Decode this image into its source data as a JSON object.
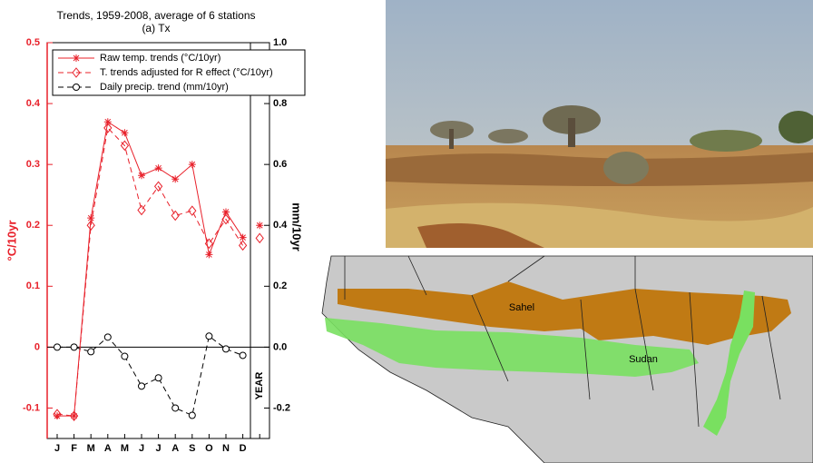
{
  "chart_data": {
    "type": "line",
    "title": "Trends, 1959-2008, average of 6 stations",
    "subtitle": "(a) Tx",
    "y_label": "°C/10yr",
    "y2_label": "mm/10yr",
    "categories": [
      "J",
      "F",
      "M",
      "A",
      "M",
      "J",
      "J",
      "A",
      "S",
      "O",
      "N",
      "D",
      "YEAR"
    ],
    "ylim": [
      -0.15,
      0.5
    ],
    "yticks": [
      -0.1,
      0,
      0.1,
      0.2,
      0.3,
      0.4,
      0.5
    ],
    "y2lim": [
      -0.3,
      1.0
    ],
    "y2ticks": [
      -0.2,
      {
        "value": 0,
        "label": "0.0"
      },
      0.2,
      0.4,
      0.6,
      0.8,
      {
        "value": 1,
        "label": "1.0"
      }
    ],
    "zero_line": true,
    "legend": "upper left",
    "series": [
      {
        "name": "Raw temp. trends (°C/10yr)",
        "color": "#e8202a",
        "dash": false,
        "marker": "asterisk",
        "values": [
          -0.113,
          -0.113,
          0.212,
          0.37,
          0.352,
          0.282,
          0.294,
          0.276,
          0.3,
          0.152,
          0.222,
          0.18,
          0.2
        ]
      },
      {
        "name": "T. trends adjusted for R effect (°C/10yr)",
        "color": "#e8202a",
        "dash": true,
        "marker": "diamond",
        "values": [
          -0.11,
          -0.113,
          0.2,
          0.36,
          0.331,
          0.225,
          0.264,
          0.216,
          0.224,
          0.17,
          0.21,
          0.167,
          0.179
        ]
      },
      {
        "name": "Daily precip. trend (mm/10yr)",
        "color": "#000000",
        "dash": true,
        "marker": "circle",
        "axis": "y2",
        "values": [
          0,
          0,
          -0.015,
          0.033,
          -0.03,
          -0.128,
          -0.101,
          -0.2,
          -0.224,
          0.036,
          -0.006,
          -0.027,
          null
        ]
      }
    ]
  },
  "map_labels": [
    "Sahel",
    "Sudan"
  ]
}
